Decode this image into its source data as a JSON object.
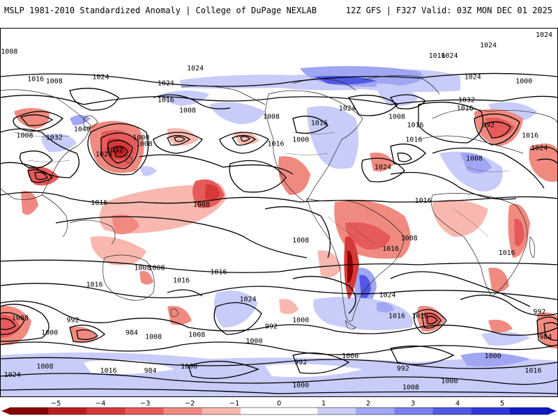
{
  "header": {
    "left_title": "MSLP 1981-2010 Standardized Anomaly | College of DuPage NEXLAB",
    "right_title": "12Z GFS | F327 Valid: 03Z MON DEC 01 2025"
  },
  "isobar_labels": [
    {
      "text": "1016",
      "lon": -172,
      "lat": 64
    },
    {
      "text": "1008",
      "lon": -160,
      "lat": 63
    },
    {
      "text": "1024",
      "lon": -130,
      "lat": 65
    },
    {
      "text": "1024",
      "lon": -88,
      "lat": 62
    },
    {
      "text": "1016",
      "lon": -88,
      "lat": 54
    },
    {
      "text": "1008",
      "lon": -74,
      "lat": 49
    },
    {
      "text": "1008",
      "lon": -20,
      "lat": 46
    },
    {
      "text": "1000",
      "lon": -1,
      "lat": 35
    },
    {
      "text": "1016",
      "lon": -17,
      "lat": 33
    },
    {
      "text": "1024",
      "lon": -69,
      "lat": 69
    },
    {
      "text": "1008",
      "lon": -102,
      "lat": 33
    },
    {
      "text": "1000",
      "lon": -104,
      "lat": 36
    },
    {
      "text": "1040",
      "lon": -142,
      "lat": 40
    },
    {
      "text": "1032",
      "lon": -160,
      "lat": 36
    },
    {
      "text": "1024",
      "lon": -128,
      "lat": 28
    },
    {
      "text": "1032",
      "lon": -121,
      "lat": 30
    },
    {
      "text": "1016",
      "lon": -131,
      "lat": 5
    },
    {
      "text": "1016",
      "lon": 11,
      "lat": 43
    },
    {
      "text": "1024",
      "lon": 29,
      "lat": 50
    },
    {
      "text": "1016",
      "lon": 73,
      "lat": 42
    },
    {
      "text": "1008",
      "lon": 61,
      "lat": 46
    },
    {
      "text": "1024",
      "lon": 52,
      "lat": 22
    },
    {
      "text": "1016",
      "lon": 72,
      "lat": 35
    },
    {
      "text": "1024",
      "lon": 110,
      "lat": 65
    },
    {
      "text": "1032",
      "lon": 106,
      "lat": 54
    },
    {
      "text": "1016",
      "lon": 105,
      "lat": 50
    },
    {
      "text": "1024",
      "lon": 120,
      "lat": 80
    },
    {
      "text": "1024",
      "lon": 156,
      "lat": 85
    },
    {
      "text": "1008",
      "lon": 171,
      "lat": 77
    },
    {
      "text": "1016",
      "lon": 87,
      "lat": 75
    },
    {
      "text": "1024",
      "lon": 95,
      "lat": 75
    },
    {
      "text": "1000",
      "lon": 143,
      "lat": 63
    },
    {
      "text": "992",
      "lon": 120,
      "lat": 42
    },
    {
      "text": "1008",
      "lon": 181,
      "lat": 37
    },
    {
      "text": "1016",
      "lon": 147,
      "lat": 37
    },
    {
      "text": "1024",
      "lon": 153,
      "lat": 31
    },
    {
      "text": "1008",
      "lon": 111,
      "lat": 26
    },
    {
      "text": "1016",
      "lon": 78,
      "lat": 6
    },
    {
      "text": "1008",
      "lon": -65,
      "lat": 4
    },
    {
      "text": "1008",
      "lon": -1,
      "lat": -13
    },
    {
      "text": "1008",
      "lon": 69,
      "lat": -12
    },
    {
      "text": "1016",
      "lon": 57,
      "lat": -17
    },
    {
      "text": "1016",
      "lon": 132,
      "lat": -19
    },
    {
      "text": "1016",
      "lon": -54,
      "lat": -28
    },
    {
      "text": "1016",
      "lon": -134,
      "lat": -34
    },
    {
      "text": "1008",
      "lon": -94,
      "lat": -26
    },
    {
      "text": "1008",
      "lon": -103,
      "lat": -26
    },
    {
      "text": "1016",
      "lon": 61,
      "lat": -49
    },
    {
      "text": "1008",
      "lon": -68,
      "lat": -58
    },
    {
      "text": "1000",
      "lon": -31,
      "lat": -61
    },
    {
      "text": "1024",
      "lon": 55,
      "lat": -39
    },
    {
      "text": "1024",
      "lon": -35,
      "lat": -41
    },
    {
      "text": "1016",
      "lon": -78,
      "lat": -32
    },
    {
      "text": "1000",
      "lon": -1,
      "lat": -51
    },
    {
      "text": "1000",
      "lon": -163,
      "lat": -57
    },
    {
      "text": "992",
      "lon": -148,
      "lat": -51
    },
    {
      "text": "1008",
      "lon": -166,
      "lat": -73
    },
    {
      "text": "1008",
      "lon": -96,
      "lat": -59
    },
    {
      "text": "984",
      "lon": -110,
      "lat": -57
    },
    {
      "text": "992",
      "lon": -20,
      "lat": -54
    },
    {
      "text": "1016",
      "lon": 76,
      "lat": -49
    },
    {
      "text": "1008",
      "lon": 178,
      "lat": -50
    },
    {
      "text": "992",
      "lon": 153,
      "lat": -47
    },
    {
      "text": "984",
      "lon": 157,
      "lat": -59
    },
    {
      "text": "1016",
      "lon": -125,
      "lat": -75
    },
    {
      "text": "1000",
      "lon": -73,
      "lat": -73
    },
    {
      "text": "992",
      "lon": -1,
      "lat": -71
    },
    {
      "text": "984",
      "lon": -98,
      "lat": -75
    },
    {
      "text": "992",
      "lon": 65,
      "lat": -74
    },
    {
      "text": "1000",
      "lon": 31,
      "lat": -68
    },
    {
      "text": "1000",
      "lon": 123,
      "lat": -68
    },
    {
      "text": "1016",
      "lon": 149,
      "lat": -75
    },
    {
      "text": "1024",
      "lon": 173,
      "lat": -77
    },
    {
      "text": "1000",
      "lon": -1,
      "lat": -82
    },
    {
      "text": "1008",
      "lon": 70,
      "lat": -83
    },
    {
      "text": "1000",
      "lon": 95,
      "lat": -80
    }
  ],
  "colorbar": {
    "ticks": [
      "−5",
      "−4",
      "−3",
      "−2",
      "−1",
      "0",
      "1",
      "2",
      "3",
      "4",
      "5"
    ],
    "colors": [
      "#8b0000",
      "#b81d1d",
      "#d63838",
      "#e65a5a",
      "#f08a80",
      "#f8b8b0",
      "#ffffff",
      "#ffffff",
      "#c8ccf8",
      "#a0a6f2",
      "#7880ec",
      "#5058e4",
      "#2e36dc",
      "#1018c8"
    ]
  }
}
